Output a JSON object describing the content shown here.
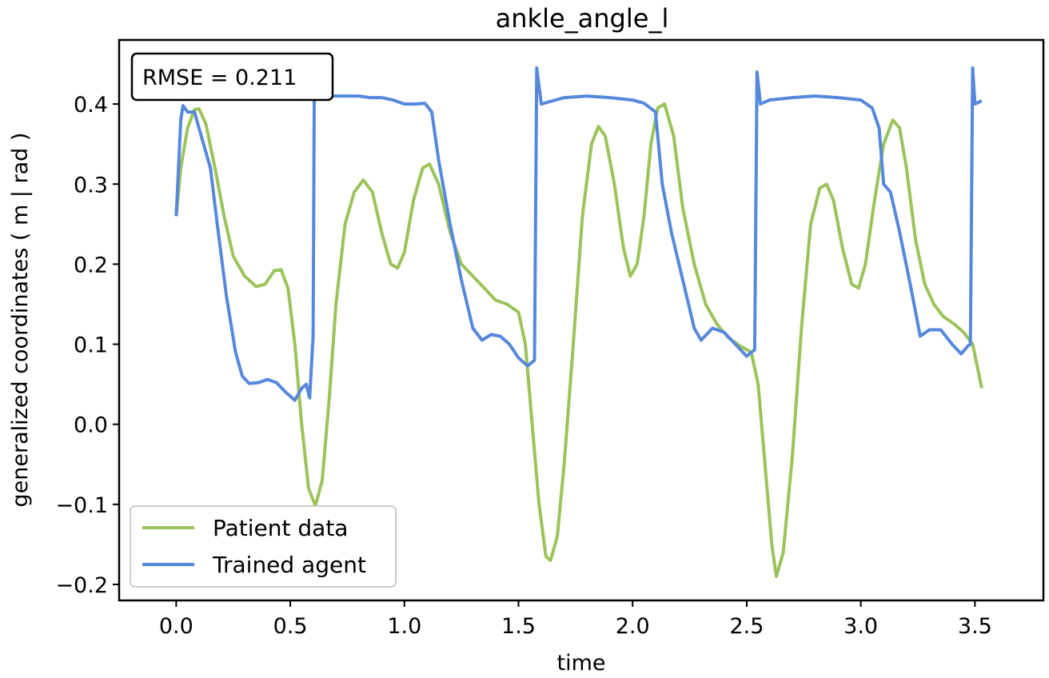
{
  "chart_data": {
    "type": "line",
    "title": "ankle_angle_l",
    "xlabel": "time",
    "ylabel": "generalized coordinates ( m | rad )",
    "xlim": [
      -0.25,
      3.8
    ],
    "ylim": [
      -0.22,
      0.48
    ],
    "xticks": [
      0.0,
      0.5,
      1.0,
      1.5,
      2.0,
      2.5,
      3.0,
      3.5
    ],
    "xtick_labels": [
      "0.0",
      "0.5",
      "1.0",
      "1.5",
      "2.0",
      "2.5",
      "3.0",
      "3.5"
    ],
    "yticks": [
      -0.2,
      -0.1,
      0.0,
      0.1,
      0.2,
      0.3,
      0.4
    ],
    "ytick_labels": [
      "−0.2",
      "−0.1",
      "0.0",
      "0.1",
      "0.2",
      "0.3",
      "0.4"
    ],
    "grid": false,
    "legend_position": "bottom-left",
    "annotation": "RMSE = 0.211",
    "series": [
      {
        "name": "Patient data",
        "color": "#9BC35A",
        "points": [
          [
            0.0,
            0.26
          ],
          [
            0.02,
            0.32
          ],
          [
            0.05,
            0.37
          ],
          [
            0.08,
            0.393
          ],
          [
            0.1,
            0.394
          ],
          [
            0.13,
            0.375
          ],
          [
            0.17,
            0.32
          ],
          [
            0.21,
            0.26
          ],
          [
            0.25,
            0.21
          ],
          [
            0.3,
            0.185
          ],
          [
            0.35,
            0.172
          ],
          [
            0.39,
            0.175
          ],
          [
            0.43,
            0.192
          ],
          [
            0.46,
            0.193
          ],
          [
            0.49,
            0.17
          ],
          [
            0.52,
            0.1
          ],
          [
            0.55,
            0.0
          ],
          [
            0.58,
            -0.08
          ],
          [
            0.61,
            -0.102
          ],
          [
            0.64,
            -0.07
          ],
          [
            0.67,
            0.03
          ],
          [
            0.7,
            0.15
          ],
          [
            0.74,
            0.25
          ],
          [
            0.78,
            0.29
          ],
          [
            0.82,
            0.305
          ],
          [
            0.86,
            0.29
          ],
          [
            0.9,
            0.24
          ],
          [
            0.94,
            0.2
          ],
          [
            0.97,
            0.195
          ],
          [
            1.0,
            0.215
          ],
          [
            1.04,
            0.28
          ],
          [
            1.08,
            0.32
          ],
          [
            1.11,
            0.325
          ],
          [
            1.15,
            0.3
          ],
          [
            1.2,
            0.24
          ],
          [
            1.25,
            0.2
          ],
          [
            1.3,
            0.185
          ],
          [
            1.35,
            0.17
          ],
          [
            1.4,
            0.155
          ],
          [
            1.45,
            0.15
          ],
          [
            1.5,
            0.14
          ],
          [
            1.53,
            0.1
          ],
          [
            1.56,
            0.0
          ],
          [
            1.59,
            -0.1
          ],
          [
            1.62,
            -0.165
          ],
          [
            1.64,
            -0.17
          ],
          [
            1.67,
            -0.14
          ],
          [
            1.7,
            -0.05
          ],
          [
            1.74,
            0.1
          ],
          [
            1.78,
            0.26
          ],
          [
            1.82,
            0.35
          ],
          [
            1.85,
            0.372
          ],
          [
            1.88,
            0.36
          ],
          [
            1.92,
            0.3
          ],
          [
            1.96,
            0.22
          ],
          [
            1.99,
            0.185
          ],
          [
            2.02,
            0.2
          ],
          [
            2.05,
            0.26
          ],
          [
            2.08,
            0.35
          ],
          [
            2.11,
            0.395
          ],
          [
            2.14,
            0.4
          ],
          [
            2.18,
            0.36
          ],
          [
            2.22,
            0.27
          ],
          [
            2.27,
            0.2
          ],
          [
            2.32,
            0.15
          ],
          [
            2.37,
            0.125
          ],
          [
            2.42,
            0.108
          ],
          [
            2.47,
            0.098
          ],
          [
            2.52,
            0.09
          ],
          [
            2.55,
            0.05
          ],
          [
            2.58,
            -0.05
          ],
          [
            2.61,
            -0.15
          ],
          [
            2.63,
            -0.19
          ],
          [
            2.66,
            -0.16
          ],
          [
            2.7,
            -0.04
          ],
          [
            2.74,
            0.12
          ],
          [
            2.78,
            0.25
          ],
          [
            2.82,
            0.295
          ],
          [
            2.85,
            0.3
          ],
          [
            2.88,
            0.28
          ],
          [
            2.92,
            0.22
          ],
          [
            2.96,
            0.175
          ],
          [
            2.99,
            0.17
          ],
          [
            3.02,
            0.2
          ],
          [
            3.06,
            0.28
          ],
          [
            3.1,
            0.35
          ],
          [
            3.14,
            0.38
          ],
          [
            3.17,
            0.37
          ],
          [
            3.2,
            0.32
          ],
          [
            3.24,
            0.23
          ],
          [
            3.28,
            0.175
          ],
          [
            3.32,
            0.15
          ],
          [
            3.36,
            0.135
          ],
          [
            3.41,
            0.125
          ],
          [
            3.45,
            0.115
          ],
          [
            3.49,
            0.1
          ],
          [
            3.53,
            0.045
          ]
        ]
      },
      {
        "name": "Trained agent",
        "color": "#5588DD",
        "points": [
          [
            0.0,
            0.26
          ],
          [
            0.02,
            0.38
          ],
          [
            0.03,
            0.398
          ],
          [
            0.05,
            0.39
          ],
          [
            0.08,
            0.39
          ],
          [
            0.1,
            0.37
          ],
          [
            0.12,
            0.35
          ],
          [
            0.15,
            0.32
          ],
          [
            0.18,
            0.25
          ],
          [
            0.22,
            0.16
          ],
          [
            0.26,
            0.09
          ],
          [
            0.29,
            0.06
          ],
          [
            0.32,
            0.051
          ],
          [
            0.36,
            0.052
          ],
          [
            0.4,
            0.056
          ],
          [
            0.44,
            0.052
          ],
          [
            0.48,
            0.04
          ],
          [
            0.52,
            0.03
          ],
          [
            0.55,
            0.045
          ],
          [
            0.57,
            0.05
          ],
          [
            0.585,
            0.033
          ],
          [
            0.6,
            0.11
          ],
          [
            0.605,
            0.405
          ],
          [
            0.62,
            0.41
          ],
          [
            0.7,
            0.41
          ],
          [
            0.8,
            0.41
          ],
          [
            0.85,
            0.408
          ],
          [
            0.9,
            0.408
          ],
          [
            0.95,
            0.405
          ],
          [
            1.0,
            0.4
          ],
          [
            1.05,
            0.4
          ],
          [
            1.09,
            0.401
          ],
          [
            1.12,
            0.39
          ],
          [
            1.15,
            0.33
          ],
          [
            1.2,
            0.25
          ],
          [
            1.25,
            0.18
          ],
          [
            1.3,
            0.12
          ],
          [
            1.34,
            0.105
          ],
          [
            1.38,
            0.112
          ],
          [
            1.42,
            0.11
          ],
          [
            1.46,
            0.1
          ],
          [
            1.5,
            0.083
          ],
          [
            1.54,
            0.073
          ],
          [
            1.57,
            0.08
          ],
          [
            1.58,
            0.445
          ],
          [
            1.6,
            0.4
          ],
          [
            1.7,
            0.408
          ],
          [
            1.8,
            0.41
          ],
          [
            1.9,
            0.408
          ],
          [
            2.0,
            0.405
          ],
          [
            2.05,
            0.401
          ],
          [
            2.1,
            0.39
          ],
          [
            2.13,
            0.3
          ],
          [
            2.17,
            0.24
          ],
          [
            2.22,
            0.18
          ],
          [
            2.27,
            0.12
          ],
          [
            2.3,
            0.105
          ],
          [
            2.35,
            0.12
          ],
          [
            2.4,
            0.115
          ],
          [
            2.45,
            0.1
          ],
          [
            2.5,
            0.085
          ],
          [
            2.52,
            0.09
          ],
          [
            2.535,
            0.093
          ],
          [
            2.545,
            0.44
          ],
          [
            2.56,
            0.4
          ],
          [
            2.6,
            0.405
          ],
          [
            2.7,
            0.408
          ],
          [
            2.8,
            0.41
          ],
          [
            2.9,
            0.408
          ],
          [
            3.0,
            0.405
          ],
          [
            3.05,
            0.395
          ],
          [
            3.08,
            0.37
          ],
          [
            3.1,
            0.3
          ],
          [
            3.13,
            0.29
          ],
          [
            3.17,
            0.24
          ],
          [
            3.22,
            0.17
          ],
          [
            3.26,
            0.11
          ],
          [
            3.3,
            0.118
          ],
          [
            3.35,
            0.118
          ],
          [
            3.4,
            0.1
          ],
          [
            3.44,
            0.088
          ],
          [
            3.47,
            0.098
          ],
          [
            3.48,
            0.1
          ],
          [
            3.49,
            0.445
          ],
          [
            3.5,
            0.4
          ],
          [
            3.53,
            0.404
          ]
        ]
      }
    ]
  }
}
